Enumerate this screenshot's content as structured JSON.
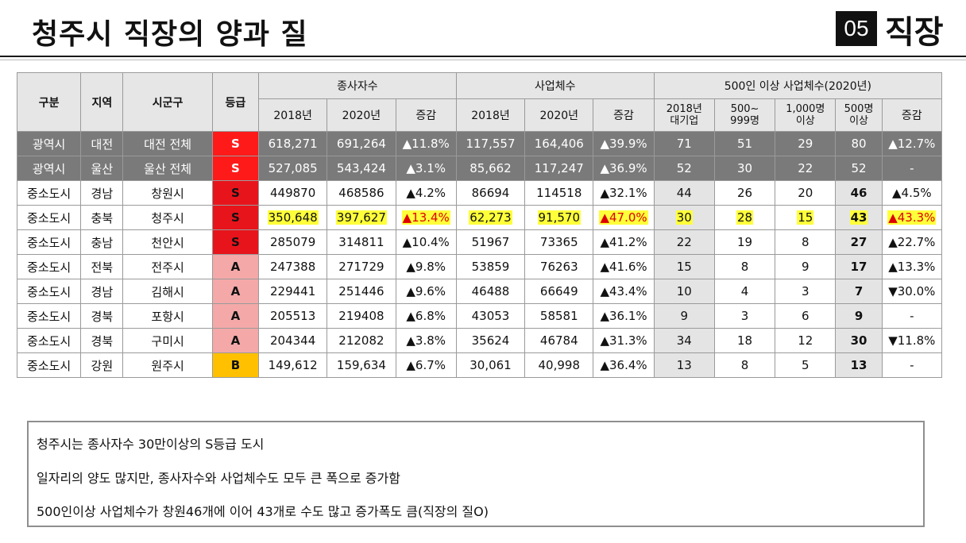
{
  "header": {
    "title": "청주시 직장의 양과 질",
    "section_number": "05",
    "section_label": "직장"
  },
  "table": {
    "header_row1": {
      "gubun": "구분",
      "region": "지역",
      "city": "시군구",
      "grade": "등급",
      "employees": "종사자수",
      "businesses": "사업체수",
      "large": "500인 이상 사업체수(2020년)"
    },
    "header_row2": {
      "emp_2018": "2018년",
      "emp_2020": "2020년",
      "emp_change": "증감",
      "biz_2018": "2018년",
      "biz_2020": "2020년",
      "biz_change": "증감",
      "large_2018_line1": "2018년",
      "large_2018_line2": "대기업",
      "large_500_line1": "500~",
      "large_500_line2": "999명",
      "large_1000_line1": "1,000명",
      "large_1000_line2": "이상",
      "large_total_line1": "500명",
      "large_total_line2": "이상",
      "large_change": "증감"
    },
    "rows": [
      {
        "type": "광역시",
        "region": "대전",
        "city": "대전 전체",
        "grade": "S",
        "emp2018": "618,271",
        "emp2020": "691,264",
        "empChg": "▲11.8%",
        "biz2018": "117,557",
        "biz2020": "164,406",
        "bizChg": "▲39.9%",
        "large2018": "71",
        "l500": "51",
        "l1000": "29",
        "lTotal": "80",
        "lChg": "▲12.7%"
      },
      {
        "type": "광역시",
        "region": "울산",
        "city": "울산 전체",
        "grade": "S",
        "emp2018": "527,085",
        "emp2020": "543,424",
        "empChg": "▲3.1%",
        "biz2018": "85,662",
        "biz2020": "117,247",
        "bizChg": "▲36.9%",
        "large2018": "52",
        "l500": "30",
        "l1000": "22",
        "lTotal": "52",
        "lChg": "-"
      },
      {
        "type": "중소도시",
        "region": "경남",
        "city": "창원시",
        "grade": "S",
        "emp2018": "449870",
        "emp2020": "468586",
        "empChg": "▲4.2%",
        "biz2018": "86694",
        "biz2020": "114518",
        "bizChg": "▲32.1%",
        "large2018": "44",
        "l500": "26",
        "l1000": "20",
        "lTotal": "46",
        "lChg": "▲4.5%"
      },
      {
        "type": "중소도시",
        "region": "충북",
        "city": "청주시",
        "grade": "S",
        "emp2018": "350,648",
        "emp2020": "397,627",
        "empChg": "▲13.4%",
        "biz2018": "62,273",
        "biz2020": "91,570",
        "bizChg": "▲47.0%",
        "large2018": "30",
        "l500": "28",
        "l1000": "15",
        "lTotal": "43",
        "lChg": "▲43.3%"
      },
      {
        "type": "중소도시",
        "region": "충남",
        "city": "천안시",
        "grade": "S",
        "emp2018": "285079",
        "emp2020": "314811",
        "empChg": "▲10.4%",
        "biz2018": "51967",
        "biz2020": "73365",
        "bizChg": "▲41.2%",
        "large2018": "22",
        "l500": "19",
        "l1000": "8",
        "lTotal": "27",
        "lChg": "▲22.7%"
      },
      {
        "type": "중소도시",
        "region": "전북",
        "city": "전주시",
        "grade": "A",
        "emp2018": "247388",
        "emp2020": "271729",
        "empChg": "▲9.8%",
        "biz2018": "53859",
        "biz2020": "76263",
        "bizChg": "▲41.6%",
        "large2018": "15",
        "l500": "8",
        "l1000": "9",
        "lTotal": "17",
        "lChg": "▲13.3%"
      },
      {
        "type": "중소도시",
        "region": "경남",
        "city": "김해시",
        "grade": "A",
        "emp2018": "229441",
        "emp2020": "251446",
        "empChg": "▲9.6%",
        "biz2018": "46488",
        "biz2020": "66649",
        "bizChg": "▲43.4%",
        "large2018": "10",
        "l500": "4",
        "l1000": "3",
        "lTotal": "7",
        "lChg": "▼30.0%"
      },
      {
        "type": "중소도시",
        "region": "경북",
        "city": "포항시",
        "grade": "A",
        "emp2018": "205513",
        "emp2020": "219408",
        "empChg": "▲6.8%",
        "biz2018": "43053",
        "biz2020": "58581",
        "bizChg": "▲36.1%",
        "large2018": "9",
        "l500": "3",
        "l1000": "6",
        "lTotal": "9",
        "lChg": "-"
      },
      {
        "type": "중소도시",
        "region": "경북",
        "city": "구미시",
        "grade": "A",
        "emp2018": "204344",
        "emp2020": "212082",
        "empChg": "▲3.8%",
        "biz2018": "35624",
        "biz2020": "46784",
        "bizChg": "▲31.3%",
        "large2018": "34",
        "l500": "18",
        "l1000": "12",
        "lTotal": "30",
        "lChg": "▼11.8%"
      },
      {
        "type": "중소도시",
        "region": "강원",
        "city": "원주시",
        "grade": "B",
        "emp2018": "149,612",
        "emp2020": "159,634",
        "empChg": "▲6.7%",
        "biz2018": "30,061",
        "biz2020": "40,998",
        "bizChg": "▲36.4%",
        "large2018": "13",
        "l500": "8",
        "l1000": "5",
        "lTotal": "13",
        "lChg": "-"
      }
    ]
  },
  "notes": [
    "청주시는 종사자수 30만이상의 S등급 도시",
    "일자리의 양도 많지만, 종사자수와 사업체수도 모두 큰 폭으로 증가함",
    "500인이상 사업체수가 창원46개에 이어 43개로 수도 많고 증가폭도 큼(직장의 질O)"
  ],
  "colors": {
    "grade_S": "#e8141b",
    "grade_A": "#f4a8a8",
    "grade_B": "#ffc000",
    "highlight": "#ffff3a",
    "metro_row": "#7a7a7a"
  }
}
